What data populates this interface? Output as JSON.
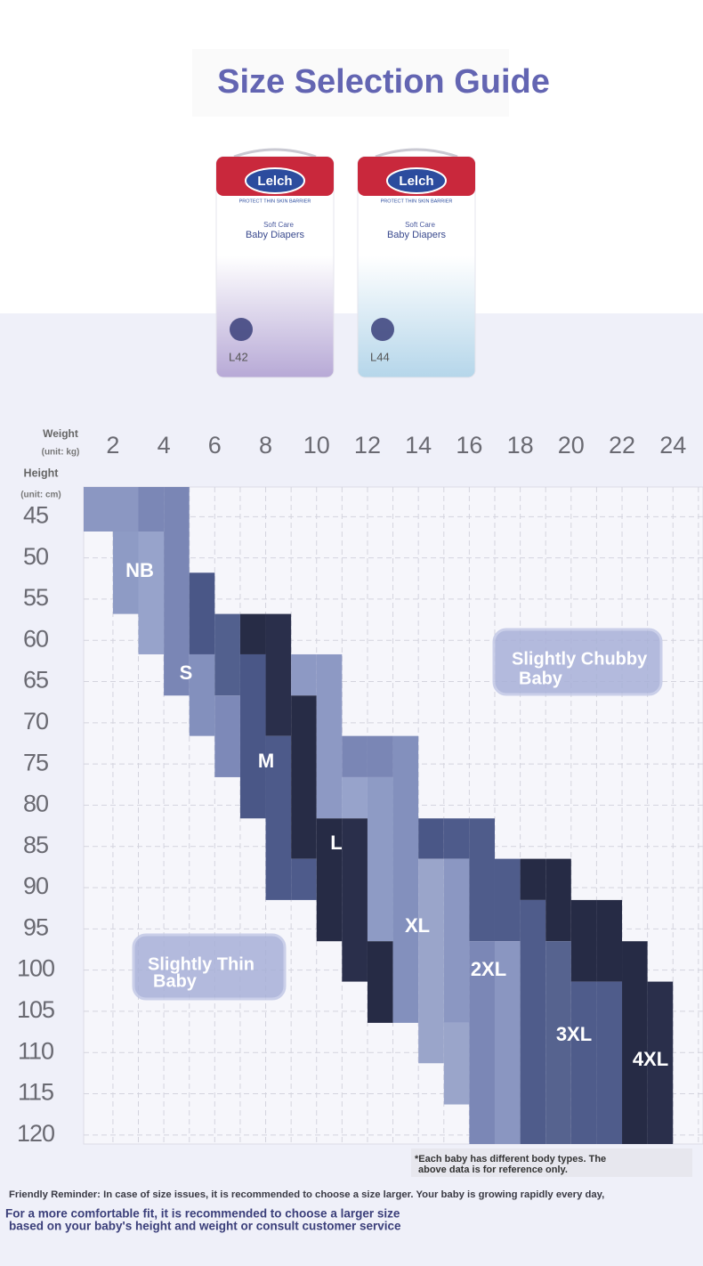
{
  "title": "Size Selection Guide",
  "packs": [
    {
      "brand": "Lelch",
      "tagline": "PROTECT THIN SKIN BARRIER",
      "line1": "Soft Care",
      "line2": "Baby Diapers",
      "size": "L42",
      "color": "#b7a9d6"
    },
    {
      "brand": "Lelch",
      "tagline": "PROTECT THIN SKIN BARRIER",
      "line1": "Soft Care",
      "line2": "Baby Diapers",
      "size": "L44",
      "color": "#b5d6ea"
    }
  ],
  "chart_data": {
    "type": "size-grid",
    "x_label": "Weight",
    "x_unit": "(unit: kg)",
    "y_label": "Height",
    "y_unit": "(unit: cm)",
    "xlim": [
      0.85,
      25.1
    ],
    "xticks": [
      2,
      4,
      6,
      8,
      10,
      12,
      14,
      16,
      18,
      20,
      22,
      24
    ],
    "ylim": [
      41.4,
      121.1
    ],
    "yticks": [
      45,
      50,
      55,
      60,
      65,
      70,
      75,
      80,
      85,
      90,
      95,
      100,
      105,
      110,
      115,
      120
    ],
    "y_inverted": true,
    "grid": true,
    "sizes": [
      "NB",
      "S",
      "M",
      "L",
      "XL",
      "2XL",
      "3XL",
      "4XL"
    ],
    "blocks": [
      {
        "x": [
          0.85,
          3
        ],
        "y": [
          41.4,
          46.8
        ],
        "color": "#8b97c2"
      },
      {
        "x": [
          2,
          3
        ],
        "y": [
          46.8,
          56.8
        ],
        "color": "#8e9bc5"
      },
      {
        "x": [
          3,
          4
        ],
        "y": [
          41.4,
          46.8
        ],
        "color": "#7b87b6"
      },
      {
        "x": [
          3,
          4
        ],
        "y": [
          46.8,
          61.7
        ],
        "color": "#97a3cb"
      },
      {
        "x": [
          4,
          5
        ],
        "y": [
          41.4,
          66.7
        ],
        "color": "#7a86b5"
      },
      {
        "x": [
          5,
          6
        ],
        "y": [
          51.8,
          61.7
        ],
        "color": "#4a5787"
      },
      {
        "x": [
          5,
          6
        ],
        "y": [
          61.7,
          71.6
        ],
        "color": "#8390bd"
      },
      {
        "x": [
          6,
          7
        ],
        "y": [
          56.8,
          66.7
        ],
        "color": "#52608e"
      },
      {
        "x": [
          6,
          7
        ],
        "y": [
          66.7,
          76.6
        ],
        "color": "#7d89b8"
      },
      {
        "x": [
          7,
          8
        ],
        "y": [
          56.8,
          61.7
        ],
        "color": "#272c46"
      },
      {
        "x": [
          7,
          8
        ],
        "y": [
          61.7,
          81.6
        ],
        "color": "#4a5787"
      },
      {
        "x": [
          8,
          9
        ],
        "y": [
          56.8,
          71.6
        ],
        "color": "#2a2f4b"
      },
      {
        "x": [
          8,
          9
        ],
        "y": [
          71.6,
          91.5
        ],
        "color": "#4d5a8a"
      },
      {
        "x": [
          9,
          10
        ],
        "y": [
          61.7,
          66.7
        ],
        "color": "#8d99c4"
      },
      {
        "x": [
          9,
          10
        ],
        "y": [
          66.7,
          86.5
        ],
        "color": "#272c46"
      },
      {
        "x": [
          9,
          10
        ],
        "y": [
          86.5,
          91.5
        ],
        "color": "#4e5b8b"
      },
      {
        "x": [
          10,
          11
        ],
        "y": [
          61.7,
          81.6
        ],
        "color": "#8d99c4"
      },
      {
        "x": [
          10,
          11
        ],
        "y": [
          81.6,
          96.5
        ],
        "color": "#262b45"
      },
      {
        "x": [
          11,
          12
        ],
        "y": [
          71.6,
          76.6
        ],
        "color": "#7a86b5"
      },
      {
        "x": [
          11,
          12
        ],
        "y": [
          76.6,
          81.6
        ],
        "color": "#97a3cb"
      },
      {
        "x": [
          11,
          12
        ],
        "y": [
          81.6,
          101.4
        ],
        "color": "#2a2f4b"
      },
      {
        "x": [
          12,
          13
        ],
        "y": [
          71.6,
          76.6
        ],
        "color": "#7a86b5"
      },
      {
        "x": [
          12,
          13
        ],
        "y": [
          76.6,
          96.5
        ],
        "color": "#8e9bc5"
      },
      {
        "x": [
          12,
          13
        ],
        "y": [
          96.5,
          106.4
        ],
        "color": "#262b45"
      },
      {
        "x": [
          13,
          14
        ],
        "y": [
          71.6,
          106.4
        ],
        "color": "#8390bd"
      },
      {
        "x": [
          14,
          15
        ],
        "y": [
          81.6,
          86.5
        ],
        "color": "#4a5787"
      },
      {
        "x": [
          14,
          15
        ],
        "y": [
          86.5,
          111.3
        ],
        "color": "#9aa5ca"
      },
      {
        "x": [
          15,
          16
        ],
        "y": [
          81.6,
          86.5
        ],
        "color": "#4e5b8b"
      },
      {
        "x": [
          15,
          16
        ],
        "y": [
          86.5,
          106.4
        ],
        "color": "#8b97c2"
      },
      {
        "x": [
          15,
          16
        ],
        "y": [
          106.4,
          116.3
        ],
        "color": "#9aa5ca"
      },
      {
        "x": [
          16,
          17
        ],
        "y": [
          81.6,
          96.5
        ],
        "color": "#4f5c8b"
      },
      {
        "x": [
          16,
          17
        ],
        "y": [
          96.5,
          121.1
        ],
        "color": "#7b87b6"
      },
      {
        "x": [
          17,
          18
        ],
        "y": [
          86.5,
          96.5
        ],
        "color": "#4f5c8b"
      },
      {
        "x": [
          17,
          18
        ],
        "y": [
          96.5,
          121.1
        ],
        "color": "#8a96c1"
      },
      {
        "x": [
          18,
          19
        ],
        "y": [
          86.5,
          91.5
        ],
        "color": "#262b45"
      },
      {
        "x": [
          18,
          19
        ],
        "y": [
          91.5,
          121.1
        ],
        "color": "#4f5c8b"
      },
      {
        "x": [
          19,
          20
        ],
        "y": [
          86.5,
          96.5
        ],
        "color": "#262b45"
      },
      {
        "x": [
          19,
          20
        ],
        "y": [
          96.5,
          121.1
        ],
        "color": "#56638f"
      },
      {
        "x": [
          20,
          21
        ],
        "y": [
          91.5,
          101.4
        ],
        "color": "#262b45"
      },
      {
        "x": [
          20,
          21
        ],
        "y": [
          101.4,
          121.1
        ],
        "color": "#4f5c8b"
      },
      {
        "x": [
          21,
          22
        ],
        "y": [
          91.5,
          101.4
        ],
        "color": "#262b45"
      },
      {
        "x": [
          21,
          22
        ],
        "y": [
          101.4,
          121.1
        ],
        "color": "#4f5c8b"
      },
      {
        "x": [
          22,
          23
        ],
        "y": [
          96.5,
          121.1
        ],
        "color": "#262b45"
      },
      {
        "x": [
          23,
          24
        ],
        "y": [
          101.4,
          121.1
        ],
        "color": "#2a2f4b"
      }
    ],
    "zones": [
      [
        "Slightly Chubby",
        "Baby"
      ],
      [
        "Slightly Thin",
        "Baby"
      ]
    ],
    "note": [
      "*Each baby has different body types. The",
      "above data is for reference only."
    ]
  },
  "reminder": "Friendly Reminder: In case of size issues, it is recommended to choose a size larger. Your baby is growing rapidly every day,",
  "footer": [
    "For a more comfortable fit, it is recommended to choose a larger size",
    "based on your baby's height and weight or consult customer service"
  ]
}
